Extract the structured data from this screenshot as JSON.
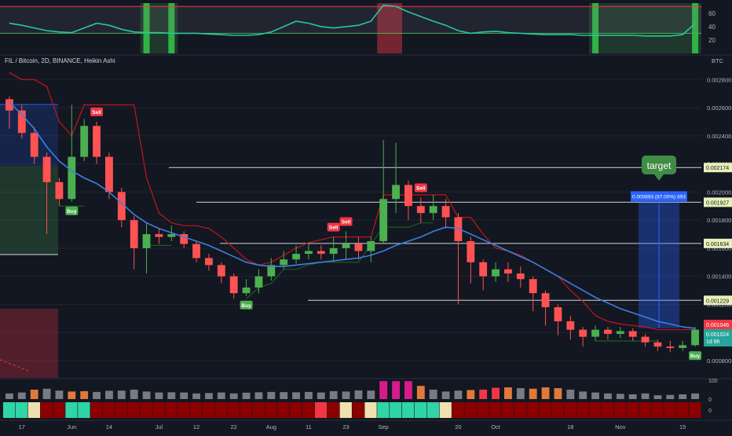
{
  "header": {
    "symbol_line": "FIL / Bitcoin, 2D, BINANCE, Heikin Ashi",
    "currency": "BTC"
  },
  "chart_data": {
    "type": "candlestick",
    "title": "FIL / Bitcoin, 2D, BINANCE, Heikin Ashi",
    "currency": "BTC",
    "ylim": [
      0.00075,
      0.00293
    ],
    "y_ticks": [
      "0.002800",
      "0.002600",
      "0.002400",
      "0.002200",
      "0.002000",
      "0.001800",
      "0.001600",
      "0.001400",
      "0.001200",
      "0.001000",
      "0.000800"
    ],
    "x_ticks": [
      "17",
      "Jun",
      "14",
      "Jul",
      "12",
      "22",
      "Aug",
      "11",
      "23",
      "Sep",
      "20",
      "Oct",
      "18",
      "Nov",
      "15"
    ],
    "x_tick_index": [
      1,
      5,
      8,
      12,
      15,
      18,
      21,
      24,
      27,
      30,
      36,
      39,
      45,
      49,
      54
    ],
    "candles": [
      [
        0.00266,
        0.00258,
        0.00268,
        0.00245
      ],
      [
        0.00258,
        0.00242,
        0.00262,
        0.00238
      ],
      [
        0.00242,
        0.00225,
        0.00246,
        0.0022
      ],
      [
        0.00225,
        0.00207,
        0.00228,
        0.0017
      ],
      [
        0.00207,
        0.00195,
        0.0021,
        0.0019
      ],
      [
        0.00195,
        0.00225,
        0.00262,
        0.00193
      ],
      [
        0.00225,
        0.00247,
        0.00252,
        0.00222
      ],
      [
        0.00247,
        0.00225,
        0.0025,
        0.0022
      ],
      [
        0.00225,
        0.002,
        0.00228,
        0.00195
      ],
      [
        0.002,
        0.0018,
        0.00203,
        0.00175
      ],
      [
        0.0018,
        0.0016,
        0.00183,
        0.00145
      ],
      [
        0.0016,
        0.0017,
        0.00178,
        0.00142
      ],
      [
        0.0017,
        0.00168,
        0.00174,
        0.00163
      ],
      [
        0.00168,
        0.0017,
        0.00176,
        0.00165
      ],
      [
        0.0017,
        0.00163,
        0.00172,
        0.0016
      ],
      [
        0.00163,
        0.00153,
        0.00165,
        0.0015
      ],
      [
        0.00153,
        0.00148,
        0.00156,
        0.00144
      ],
      [
        0.00148,
        0.0014,
        0.0015,
        0.00135
      ],
      [
        0.0014,
        0.00128,
        0.00142,
        0.00124
      ],
      [
        0.00128,
        0.00132,
        0.00138,
        0.00126
      ],
      [
        0.00132,
        0.0014,
        0.00145,
        0.00128
      ],
      [
        0.0014,
        0.00148,
        0.00153,
        0.00137
      ],
      [
        0.00148,
        0.00152,
        0.00158,
        0.00145
      ],
      [
        0.00152,
        0.00156,
        0.00162,
        0.00149
      ],
      [
        0.00156,
        0.00158,
        0.00164,
        0.00152
      ],
      [
        0.00158,
        0.00156,
        0.00162,
        0.00152
      ],
      [
        0.00156,
        0.0016,
        0.00168,
        0.0015
      ],
      [
        0.0016,
        0.00163,
        0.00172,
        0.00152
      ],
      [
        0.00163,
        0.00158,
        0.00168,
        0.00152
      ],
      [
        0.00158,
        0.00165,
        0.00168,
        0.0015
      ],
      [
        0.00165,
        0.00195,
        0.00237,
        0.00163
      ],
      [
        0.00195,
        0.00205,
        0.00235,
        0.00185
      ],
      [
        0.00205,
        0.0019,
        0.00208,
        0.0018
      ],
      [
        0.0019,
        0.00185,
        0.00196,
        0.00178
      ],
      [
        0.00185,
        0.0019,
        0.00198,
        0.0018
      ],
      [
        0.0019,
        0.00182,
        0.00195,
        0.00174
      ],
      [
        0.00182,
        0.00165,
        0.00185,
        0.0012
      ],
      [
        0.00165,
        0.0015,
        0.00168,
        0.00135
      ],
      [
        0.0015,
        0.0014,
        0.00152,
        0.0013
      ],
      [
        0.0014,
        0.00145,
        0.0015,
        0.00136
      ],
      [
        0.00145,
        0.00142,
        0.0015,
        0.00136
      ],
      [
        0.00142,
        0.00138,
        0.00147,
        0.00132
      ],
      [
        0.00138,
        0.00128,
        0.0014,
        0.00115
      ],
      [
        0.00128,
        0.00118,
        0.0013,
        0.00105
      ],
      [
        0.00118,
        0.00108,
        0.0012,
        0.00098
      ],
      [
        0.00108,
        0.00102,
        0.00112,
        0.00095
      ],
      [
        0.00102,
        0.00097,
        0.00104,
        0.0009
      ],
      [
        0.00097,
        0.00102,
        0.00105,
        0.00094
      ],
      [
        0.00102,
        0.00099,
        0.00104,
        0.00095
      ],
      [
        0.00099,
        0.00101,
        0.00104,
        0.00096
      ],
      [
        0.00101,
        0.00097,
        0.00103,
        0.00094
      ],
      [
        0.00097,
        0.00093,
        0.00099,
        0.0009
      ],
      [
        0.00093,
        0.0009,
        0.00095,
        0.00087
      ],
      [
        0.0009,
        0.00089,
        0.00094,
        0.00086
      ],
      [
        0.00089,
        0.00091,
        0.00094,
        0.00087
      ],
      [
        0.00091,
        0.00102,
        0.00104,
        0.0009
      ]
    ],
    "ma_line": [
      0.00264,
      0.00255,
      0.00245,
      0.00232,
      0.00222,
      0.00215,
      0.0021,
      0.00206,
      0.002,
      0.00192,
      0.00184,
      0.00178,
      0.00174,
      0.00171,
      0.00168,
      0.00165,
      0.00162,
      0.00158,
      0.00154,
      0.0015,
      0.00148,
      0.00147,
      0.00147,
      0.00148,
      0.00149,
      0.0015,
      0.00151,
      0.00152,
      0.00153,
      0.00155,
      0.00158,
      0.00162,
      0.00165,
      0.00168,
      0.00172,
      0.00175,
      0.00174,
      0.0017,
      0.00166,
      0.00162,
      0.00158,
      0.00154,
      0.0015,
      0.00145,
      0.0014,
      0.00135,
      0.0013,
      0.00125,
      0.00121,
      0.00117,
      0.00114,
      0.00111,
      0.00108,
      0.00106,
      0.00104,
      0.00103
    ],
    "trail_line": [
      0.00285,
      0.0028,
      0.0028,
      0.00275,
      0.0025,
      0.0024,
      0.00262,
      0.00262,
      0.00262,
      0.00262,
      0.00262,
      0.0021,
      0.00185,
      0.00178,
      0.00176,
      0.00176,
      0.00174,
      0.00168,
      0.0016,
      0.00152,
      0.00148,
      0.0015,
      0.00155,
      0.0016,
      0.00164,
      0.00166,
      0.00168,
      0.00168,
      0.00168,
      0.00168,
      0.00198,
      0.00198,
      0.00198,
      0.00198,
      0.00198,
      0.00198,
      0.00182,
      0.00182,
      0.0017,
      0.0016,
      0.00158,
      0.00155,
      0.0015,
      0.00145,
      0.0014,
      0.0013,
      0.00122,
      0.00112,
      0.00108,
      0.00106,
      0.00105,
      0.00104,
      0.00102,
      0.00102,
      0.00102,
      0.00102
    ],
    "support_line": [
      null,
      null,
      null,
      null,
      0.0019,
      0.0019,
      0.0019,
      null,
      null,
      null,
      null,
      0.00162,
      0.00162,
      0.00162,
      null,
      null,
      null,
      null,
      null,
      0.00124,
      0.00132,
      0.00135,
      0.00145,
      0.00145,
      0.00148,
      0.0015,
      0.0015,
      0.0015,
      0.0015,
      0.00163,
      0.00175,
      0.00175,
      0.00175,
      0.00178,
      0.00178,
      null,
      null,
      null,
      null,
      null,
      null,
      null,
      null,
      null,
      null,
      null,
      null,
      0.00094,
      0.00094,
      0.00094,
      0.00094,
      0.00094,
      0.00094,
      null,
      null,
      null
    ],
    "horizontal_lines": [
      {
        "value": 0.002174,
        "label": "0.002174"
      },
      {
        "value": 0.001927,
        "label": "0.001927"
      },
      {
        "value": 0.001634,
        "label": "0.001634"
      },
      {
        "value": 0.001229,
        "label": "0.001229"
      }
    ],
    "price_labels": [
      {
        "value": 0.001046,
        "label": "0.001046",
        "color": "#f23645"
      },
      {
        "value": 0.001024,
        "label": "0.001024",
        "color": "#26a69a"
      }
    ],
    "countdown": "1d 8h",
    "target_label": "target",
    "measure_label": "0.000893 (87.00%) 893",
    "signals": [
      {
        "type": "Buy",
        "index": 5
      },
      {
        "type": "Sell",
        "index": 7
      },
      {
        "type": "Buy",
        "index": 19
      },
      {
        "type": "Sell",
        "index": 26
      },
      {
        "type": "Sell",
        "index": 27
      },
      {
        "type": "Sell",
        "index": 33
      },
      {
        "type": "Buy",
        "index": 55
      }
    ],
    "signal_colors": {
      "buy": "#4caf50",
      "sell": "#f23645"
    },
    "oscillator": {
      "levels": [
        70,
        30
      ],
      "ticks": [
        "60",
        "40",
        "20"
      ],
      "values": [
        45,
        42,
        38,
        34,
        32,
        31,
        38,
        45,
        42,
        36,
        32,
        31,
        31,
        30,
        30,
        30,
        29,
        28,
        27,
        27,
        28,
        32,
        40,
        48,
        45,
        40,
        38,
        40,
        42,
        48,
        72,
        70,
        62,
        55,
        48,
        42,
        34,
        30,
        32,
        33,
        31,
        30,
        29,
        28,
        28,
        28,
        27,
        27,
        27,
        27,
        27,
        26,
        26,
        26,
        28,
        45
      ],
      "bull_zones": [
        [
          11,
          13
        ],
        [
          47,
          55
        ]
      ],
      "bear_zones": [
        [
          30,
          31
        ]
      ]
    },
    "volume": {
      "ticks": [
        "100",
        "0"
      ],
      "values": [
        30,
        35,
        50,
        55,
        45,
        40,
        42,
        38,
        44,
        45,
        50,
        40,
        35,
        36,
        35,
        30,
        32,
        35,
        30,
        34,
        36,
        38,
        37,
        36,
        38,
        35,
        42,
        40,
        46,
        45,
        95,
        95,
        95,
        70,
        50,
        40,
        45,
        48,
        50,
        60,
        62,
        58,
        55,
        62,
        58,
        50,
        40,
        35,
        30,
        28,
        25,
        30,
        20,
        22,
        25,
        30
      ],
      "colors": [
        "#787b86",
        "#787b86",
        "#e07a3b",
        "#787b86",
        "#787b86",
        "#e07a3b",
        "#e07a3b",
        "#787b86",
        "#787b86",
        "#787b86",
        "#787b86",
        "#787b86",
        "#787b86",
        "#787b86",
        "#787b86",
        "#787b86",
        "#787b86",
        "#787b86",
        "#787b86",
        "#787b86",
        "#787b86",
        "#787b86",
        "#787b86",
        "#787b86",
        "#787b86",
        "#787b86",
        "#787b86",
        "#787b86",
        "#787b86",
        "#787b86",
        "#d81b8c",
        "#d81b8c",
        "#d81b8c",
        "#e07a3b",
        "#787b86",
        "#787b86",
        "#787b86",
        "#e07a3b",
        "#f23645",
        "#f23645",
        "#e07a3b",
        "#787b86",
        "#e07a3b",
        "#e07a3b",
        "#e07a3b",
        "#787b86",
        "#787b86",
        "#787b86",
        "#787b86",
        "#787b86",
        "#787b86",
        "#787b86",
        "#787b86",
        "#787b86",
        "#787b86",
        "#787b86"
      ]
    },
    "heat_strip": [
      "#2fd5a6",
      "#2fd5a6",
      "#f0e0b0",
      "#8b0000",
      "#8b0000",
      "#2fd5a6",
      "#2fd5a6",
      "#8b0000",
      "#8b0000",
      "#8b0000",
      "#8b0000",
      "#8b0000",
      "#8b0000",
      "#8b0000",
      "#8b0000",
      "#8b0000",
      "#8b0000",
      "#8b0000",
      "#8b0000",
      "#8b0000",
      "#8b0000",
      "#8b0000",
      "#8b0000",
      "#8b0000",
      "#8b0000",
      "#f23645",
      "#8b0000",
      "#f0e0b0",
      "#8b0000",
      "#f0e0b0",
      "#2fd5a6",
      "#2fd5a6",
      "#2fd5a6",
      "#2fd5a6",
      "#2fd5a6",
      "#f0e0b0",
      "#8b0000",
      "#8b0000",
      "#8b0000",
      "#8b0000",
      "#8b0000",
      "#8b0000",
      "#8b0000",
      "#8b0000",
      "#8b0000",
      "#8b0000",
      "#8b0000",
      "#8b0000",
      "#8b0000",
      "#8b0000",
      "#8b0000",
      "#8b0000",
      "#8b0000",
      "#8b0000",
      "#8b0000",
      "#8b0000"
    ],
    "colors": {
      "up": "#4caf50",
      "down": "#ff5252",
      "ma": "#3d7fe0",
      "trail": "#c2161b",
      "support": "#1b5e20",
      "hline": "#d1d4dc",
      "bg": "#131722",
      "grid": "#1f2430",
      "text": "#b2b5be",
      "oscillator": "#26c6a4",
      "target": "#3f8c45",
      "measure": "#2962ff"
    }
  }
}
